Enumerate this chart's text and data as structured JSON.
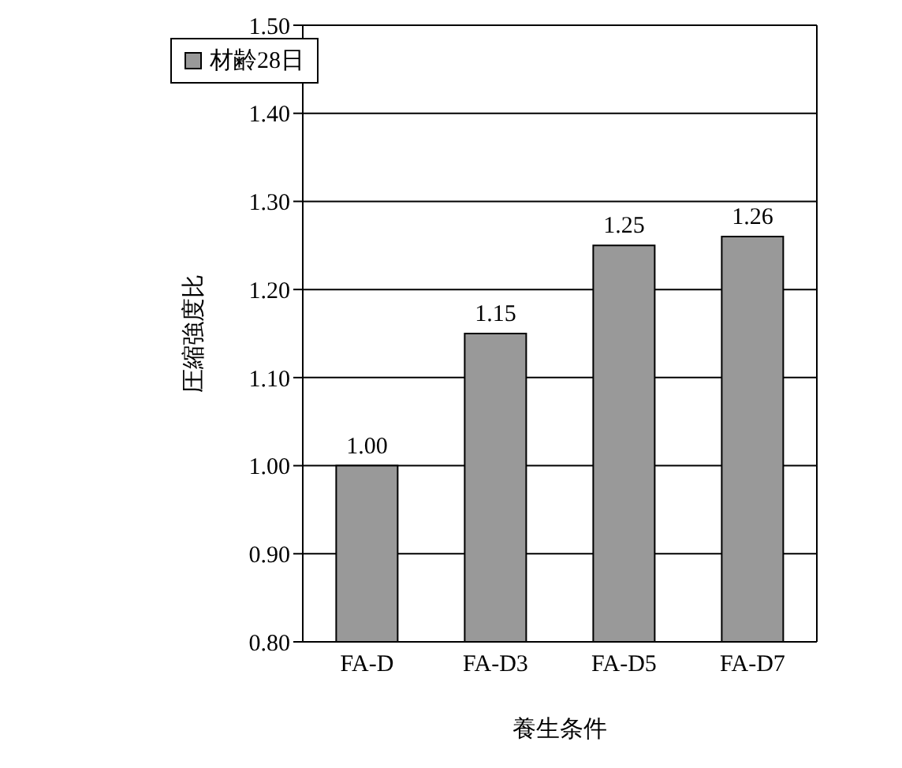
{
  "chart_data": {
    "type": "bar",
    "xlabel": "養生条件",
    "ylabel": "圧縮強度比",
    "categories": [
      "FA-D",
      "FA-D3",
      "FA-D5",
      "FA-D7"
    ],
    "series": [
      {
        "name": "材齢28日",
        "color": "#999999",
        "values": [
          1.0,
          1.15,
          1.25,
          1.26
        ],
        "value_labels": [
          "1.00",
          "1.15",
          "1.25",
          "1.26"
        ]
      }
    ],
    "ylim": [
      0.8,
      1.5
    ],
    "yticks": [
      {
        "value": 0.8,
        "label": "0.80"
      },
      {
        "value": 0.9,
        "label": "0.90"
      },
      {
        "value": 1.0,
        "label": "1.00"
      },
      {
        "value": 1.1,
        "label": "1.10"
      },
      {
        "value": 1.2,
        "label": "1.20"
      },
      {
        "value": 1.3,
        "label": "1.30"
      },
      {
        "value": 1.4,
        "label": "1.40"
      },
      {
        "value": 1.5,
        "label": "1.50"
      }
    ],
    "grid": "y",
    "legend": "top left"
  }
}
